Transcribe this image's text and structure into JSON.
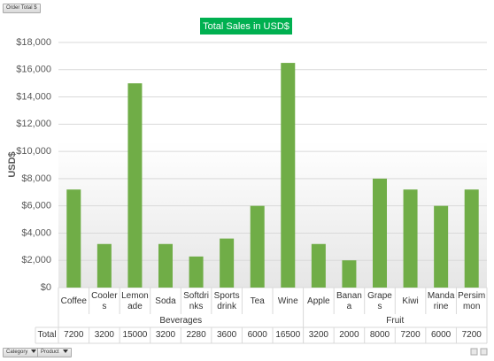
{
  "filter_buttons": {
    "value_field": "Order Total $",
    "row_fields": [
      "Category",
      "Product"
    ]
  },
  "chart_data": {
    "type": "bar",
    "title": "Total Sales in USD$",
    "y_label": "USD$",
    "color": "#70ad47",
    "grid": true,
    "row_label": "Total",
    "groups": [
      {
        "name": "Beverages",
        "categories": [
          "Coffee",
          "Coolers",
          "Lemonade",
          "Soda",
          "Softdrinks",
          "Sports drink",
          "Tea",
          "Wine"
        ],
        "values": [
          7200,
          3200,
          15000,
          3200,
          2280,
          3600,
          6000,
          16500
        ]
      },
      {
        "name": "Fruit",
        "categories": [
          "Apple",
          "Banana",
          "Grapes",
          "Kiwi",
          "Mandarine",
          "Persimmon"
        ],
        "values": [
          3200,
          2000,
          8000,
          7200,
          6000,
          7200
        ]
      }
    ],
    "ylim": [
      0,
      18000
    ],
    "yticks": [
      {
        "value": 0,
        "label": "$0"
      },
      {
        "value": 2000,
        "label": "$2,000"
      },
      {
        "value": 4000,
        "label": "$4,000"
      },
      {
        "value": 6000,
        "label": "$6,000"
      },
      {
        "value": 8000,
        "label": "$8,000"
      },
      {
        "value": 10000,
        "label": "$10,000"
      },
      {
        "value": 12000,
        "label": "$12,000"
      },
      {
        "value": 14000,
        "label": "$14,000"
      },
      {
        "value": 16000,
        "label": "$16,000"
      },
      {
        "value": 18000,
        "label": "$18,000"
      }
    ]
  }
}
